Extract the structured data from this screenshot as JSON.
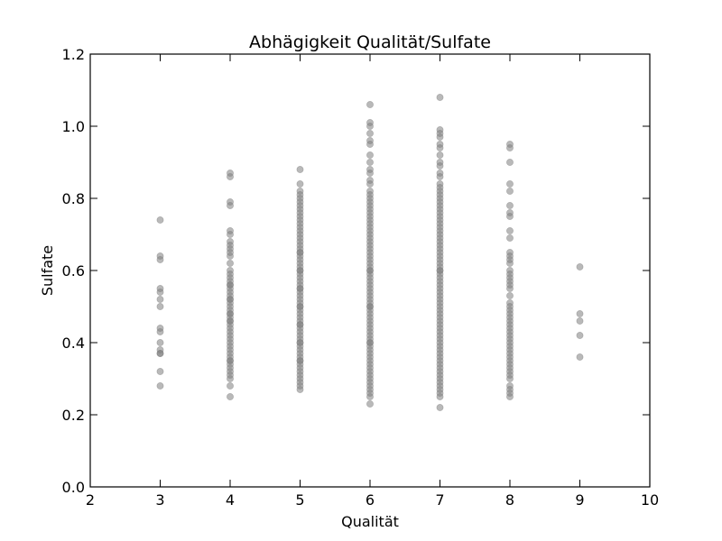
{
  "chart_data": {
    "type": "scatter",
    "title": "Abhägigkeit Qualität/Sulfate",
    "xlabel": "Qualität",
    "ylabel": "Sulfate",
    "xlim": [
      2,
      10
    ],
    "ylim": [
      0.0,
      1.2
    ],
    "xticks": [
      "2",
      "3",
      "4",
      "5",
      "6",
      "7",
      "8",
      "9",
      "10"
    ],
    "yticks": [
      "0.0",
      "0.2",
      "0.4",
      "0.6",
      "0.8",
      "1.0",
      "1.2"
    ],
    "grid": false,
    "legend": "none",
    "marker_color": "#808080",
    "marker_opacity": 0.55,
    "series": [
      {
        "x": [
          3,
          3,
          3,
          3,
          3,
          3,
          3,
          3,
          3,
          3,
          3,
          3,
          3,
          3,
          3
        ],
        "y": [
          0.74,
          0.64,
          0.63,
          0.55,
          0.54,
          0.52,
          0.5,
          0.44,
          0.43,
          0.4,
          0.38,
          0.37,
          0.37,
          0.32,
          0.28
        ]
      },
      {
        "x": [
          4,
          4,
          4,
          4,
          4,
          4,
          4,
          4,
          4,
          4,
          4,
          4,
          4,
          4,
          4,
          4,
          4,
          4,
          4,
          4,
          4,
          4,
          4,
          4,
          4,
          4,
          4,
          4,
          4,
          4,
          4,
          4,
          4,
          4,
          4,
          4,
          4,
          4,
          4,
          4,
          4,
          4,
          4,
          4,
          4,
          4,
          4,
          4,
          4,
          4
        ],
        "y": [
          0.87,
          0.86,
          0.79,
          0.78,
          0.71,
          0.7,
          0.68,
          0.67,
          0.66,
          0.65,
          0.64,
          0.62,
          0.6,
          0.59,
          0.58,
          0.57,
          0.56,
          0.55,
          0.54,
          0.53,
          0.52,
          0.51,
          0.5,
          0.49,
          0.48,
          0.47,
          0.46,
          0.45,
          0.44,
          0.43,
          0.42,
          0.4,
          0.39,
          0.38,
          0.37,
          0.36,
          0.35,
          0.34,
          0.33,
          0.32,
          0.31,
          0.3,
          0.28,
          0.25,
          0.56,
          0.48,
          0.41,
          0.35,
          0.46,
          0.52
        ]
      },
      {
        "x": [
          5,
          5,
          5,
          5,
          5,
          5,
          5,
          5,
          5,
          5,
          5,
          5,
          5,
          5,
          5,
          5,
          5,
          5,
          5,
          5,
          5,
          5,
          5,
          5,
          5,
          5,
          5,
          5,
          5,
          5,
          5,
          5,
          5,
          5,
          5,
          5,
          5,
          5,
          5,
          5,
          5,
          5,
          5,
          5,
          5,
          5,
          5,
          5,
          5,
          5,
          5,
          5,
          5,
          5,
          5,
          5,
          5,
          5,
          5,
          5,
          5,
          5,
          5,
          5,
          5
        ],
        "y": [
          0.88,
          0.84,
          0.82,
          0.81,
          0.8,
          0.79,
          0.78,
          0.77,
          0.76,
          0.75,
          0.74,
          0.73,
          0.72,
          0.71,
          0.7,
          0.69,
          0.68,
          0.67,
          0.66,
          0.65,
          0.64,
          0.63,
          0.62,
          0.61,
          0.6,
          0.59,
          0.58,
          0.57,
          0.56,
          0.55,
          0.54,
          0.53,
          0.52,
          0.51,
          0.5,
          0.49,
          0.48,
          0.47,
          0.46,
          0.45,
          0.44,
          0.43,
          0.42,
          0.41,
          0.4,
          0.39,
          0.38,
          0.37,
          0.36,
          0.35,
          0.34,
          0.33,
          0.32,
          0.31,
          0.3,
          0.29,
          0.28,
          0.27,
          0.6,
          0.55,
          0.5,
          0.45,
          0.4,
          0.35,
          0.65
        ]
      },
      {
        "x": [
          6,
          6,
          6,
          6,
          6,
          6,
          6,
          6,
          6,
          6,
          6,
          6,
          6,
          6,
          6,
          6,
          6,
          6,
          6,
          6,
          6,
          6,
          6,
          6,
          6,
          6,
          6,
          6,
          6,
          6,
          6,
          6,
          6,
          6,
          6,
          6,
          6,
          6,
          6,
          6,
          6,
          6,
          6,
          6,
          6,
          6,
          6,
          6,
          6,
          6,
          6,
          6,
          6,
          6,
          6,
          6,
          6,
          6,
          6,
          6,
          6,
          6,
          6,
          6,
          6,
          6,
          6,
          6,
          6,
          6,
          6,
          6,
          6,
          6
        ],
        "y": [
          1.06,
          1.01,
          1.0,
          0.98,
          0.96,
          0.95,
          0.92,
          0.9,
          0.88,
          0.87,
          0.85,
          0.84,
          0.82,
          0.81,
          0.8,
          0.79,
          0.78,
          0.77,
          0.76,
          0.75,
          0.74,
          0.73,
          0.72,
          0.71,
          0.7,
          0.69,
          0.68,
          0.67,
          0.66,
          0.65,
          0.64,
          0.63,
          0.62,
          0.61,
          0.6,
          0.59,
          0.58,
          0.57,
          0.56,
          0.55,
          0.54,
          0.53,
          0.52,
          0.51,
          0.5,
          0.49,
          0.48,
          0.47,
          0.46,
          0.45,
          0.44,
          0.43,
          0.42,
          0.41,
          0.4,
          0.39,
          0.38,
          0.37,
          0.36,
          0.35,
          0.34,
          0.33,
          0.32,
          0.31,
          0.3,
          0.29,
          0.28,
          0.27,
          0.26,
          0.25,
          0.23,
          0.6,
          0.5,
          0.4
        ]
      },
      {
        "x": [
          7,
          7,
          7,
          7,
          7,
          7,
          7,
          7,
          7,
          7,
          7,
          7,
          7,
          7,
          7,
          7,
          7,
          7,
          7,
          7,
          7,
          7,
          7,
          7,
          7,
          7,
          7,
          7,
          7,
          7,
          7,
          7,
          7,
          7,
          7,
          7,
          7,
          7,
          7,
          7,
          7,
          7,
          7,
          7,
          7,
          7,
          7,
          7,
          7,
          7,
          7,
          7,
          7,
          7,
          7,
          7,
          7,
          7,
          7,
          7,
          7,
          7,
          7,
          7,
          7,
          7,
          7,
          7,
          7,
          7,
          7,
          7,
          7
        ],
        "y": [
          1.08,
          0.99,
          0.98,
          0.97,
          0.95,
          0.94,
          0.92,
          0.9,
          0.89,
          0.87,
          0.86,
          0.84,
          0.83,
          0.82,
          0.81,
          0.8,
          0.79,
          0.78,
          0.77,
          0.76,
          0.75,
          0.74,
          0.73,
          0.72,
          0.71,
          0.7,
          0.69,
          0.68,
          0.67,
          0.66,
          0.65,
          0.64,
          0.63,
          0.62,
          0.61,
          0.6,
          0.59,
          0.58,
          0.57,
          0.56,
          0.55,
          0.54,
          0.53,
          0.52,
          0.51,
          0.5,
          0.49,
          0.48,
          0.47,
          0.46,
          0.45,
          0.44,
          0.43,
          0.42,
          0.41,
          0.4,
          0.39,
          0.38,
          0.37,
          0.36,
          0.35,
          0.34,
          0.33,
          0.32,
          0.31,
          0.3,
          0.29,
          0.28,
          0.27,
          0.26,
          0.25,
          0.22,
          0.6
        ]
      },
      {
        "x": [
          8,
          8,
          8,
          8,
          8,
          8,
          8,
          8,
          8,
          8,
          8,
          8,
          8,
          8,
          8,
          8,
          8,
          8,
          8,
          8,
          8,
          8,
          8,
          8,
          8,
          8,
          8,
          8,
          8,
          8,
          8,
          8,
          8,
          8,
          8,
          8,
          8,
          8,
          8,
          8,
          8,
          8,
          8,
          8,
          8,
          8,
          8
        ],
        "y": [
          0.95,
          0.94,
          0.9,
          0.84,
          0.82,
          0.78,
          0.76,
          0.75,
          0.71,
          0.69,
          0.65,
          0.64,
          0.63,
          0.62,
          0.6,
          0.59,
          0.58,
          0.57,
          0.56,
          0.55,
          0.53,
          0.51,
          0.5,
          0.49,
          0.48,
          0.47,
          0.46,
          0.45,
          0.43,
          0.42,
          0.41,
          0.4,
          0.39,
          0.38,
          0.37,
          0.36,
          0.35,
          0.34,
          0.33,
          0.32,
          0.31,
          0.3,
          0.28,
          0.27,
          0.26,
          0.25,
          0.44
        ]
      },
      {
        "x": [
          9,
          9,
          9,
          9,
          9
        ],
        "y": [
          0.61,
          0.48,
          0.46,
          0.42,
          0.36
        ]
      }
    ]
  }
}
